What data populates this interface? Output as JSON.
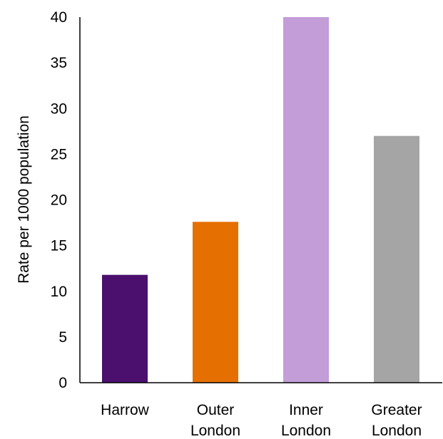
{
  "chart_data": {
    "type": "bar",
    "title": "",
    "xlabel": "",
    "ylabel": "Rate per 1000 population",
    "ylim": [
      0,
      40
    ],
    "yticks": [
      "0",
      "5",
      "10",
      "15",
      "20",
      "25",
      "30",
      "35",
      "40"
    ],
    "categories": [
      [
        "Harrow"
      ],
      [
        "Outer",
        "London"
      ],
      [
        "Inner",
        "London"
      ],
      [
        "Greater",
        "London"
      ]
    ],
    "values": [
      11.8,
      17.6,
      40.0,
      27.0
    ],
    "colors": [
      "#4b0f6e",
      "#e56f00",
      "#c39dd7",
      "#a5a5a5"
    ],
    "grid": false,
    "legend": "none"
  }
}
